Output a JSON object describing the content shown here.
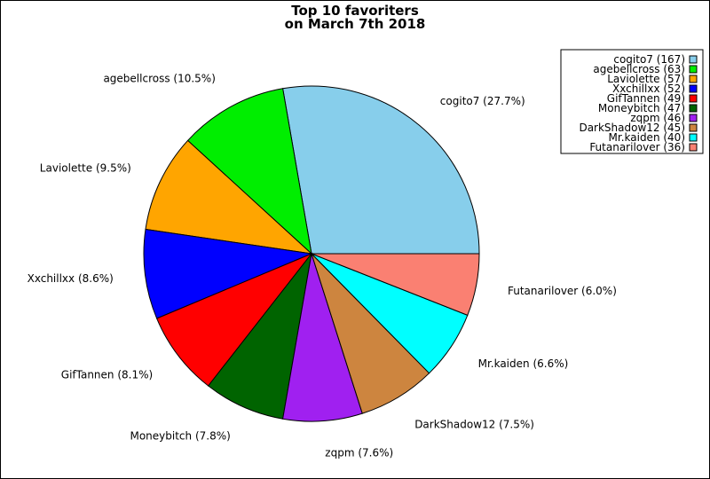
{
  "chart_data": {
    "type": "pie",
    "title": "Top 10 favoriters",
    "subtitle": "on March 7th 2018",
    "legend_position": "top-right",
    "slices": [
      {
        "label": "cogito7",
        "value": 167,
        "percent_label": "27.7%",
        "color": "#87ceeb"
      },
      {
        "label": "agebellcross",
        "value": 63,
        "percent_label": "10.5%",
        "color": "#00ee00"
      },
      {
        "label": "Laviolette",
        "value": 57,
        "percent_label": "9.5%",
        "color": "#ffa500"
      },
      {
        "label": "Xxchillxx",
        "value": 52,
        "percent_label": "8.6%",
        "color": "#0000ff"
      },
      {
        "label": "GifTannen",
        "value": 49,
        "percent_label": "8.1%",
        "color": "#ff0000"
      },
      {
        "label": "Moneybitch",
        "value": 47,
        "percent_label": "7.8%",
        "color": "#006400"
      },
      {
        "label": "zqpm",
        "value": 46,
        "percent_label": "7.6%",
        "color": "#a020f0"
      },
      {
        "label": "DarkShadow12",
        "value": 45,
        "percent_label": "7.5%",
        "color": "#cd853f"
      },
      {
        "label": "Mr.kaiden",
        "value": 40,
        "percent_label": "6.6%",
        "color": "#00ffff"
      },
      {
        "label": "Futanarilover",
        "value": 36,
        "percent_label": "6.0%",
        "color": "#fa8072"
      }
    ]
  }
}
